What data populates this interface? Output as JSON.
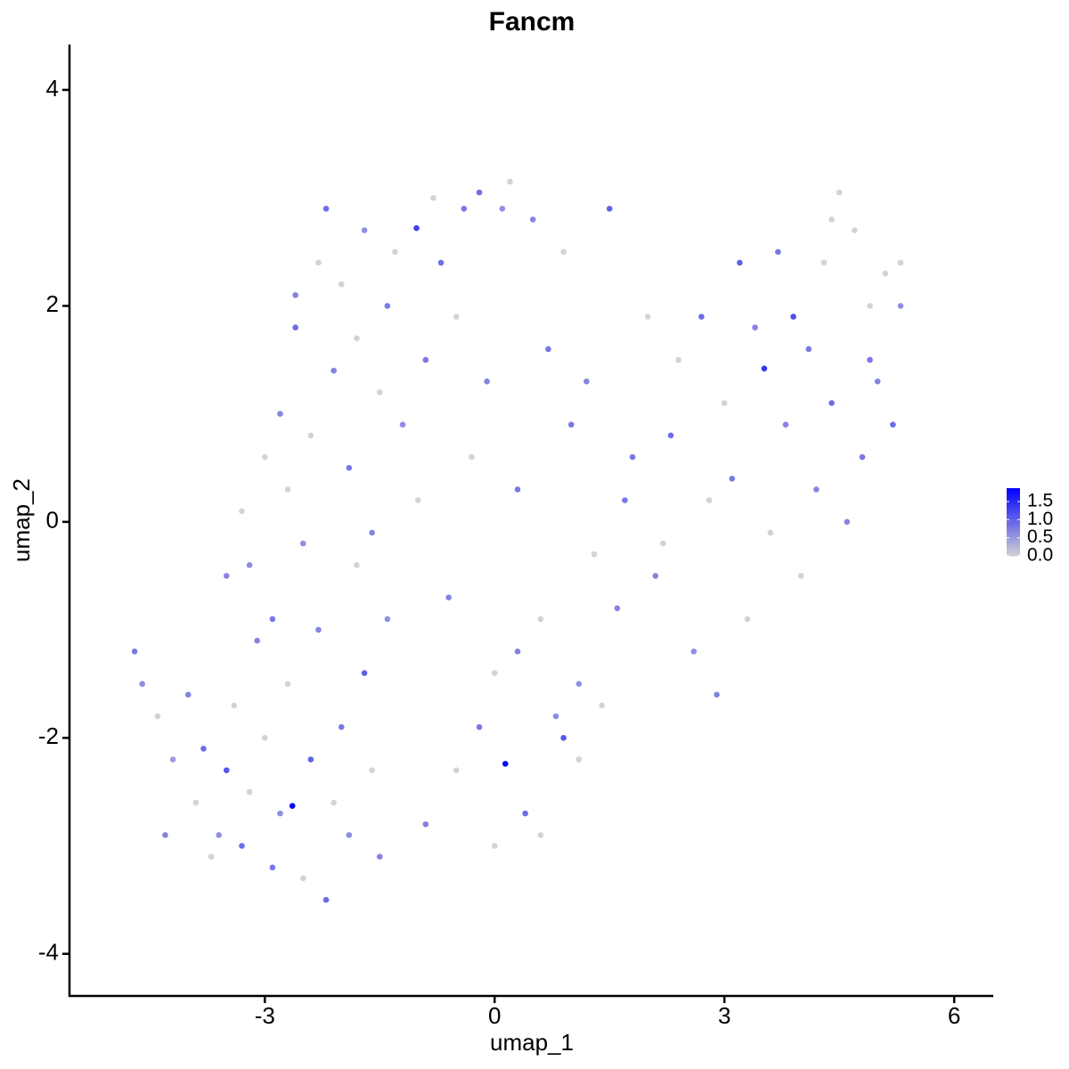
{
  "chart_data": {
    "type": "scatter",
    "title": "Fancm",
    "xlabel": "umap_1",
    "ylabel": "umap_2",
    "xlim": [
      -5.55,
      6.51
    ],
    "ylim": [
      -4.39,
      4.42
    ],
    "xticks": [
      -3,
      0,
      3,
      6
    ],
    "yticks": [
      -4,
      -2,
      0,
      2,
      4
    ],
    "color_low": "#d3d3d3",
    "color_high": "#0000ff",
    "colorlim": [
      0,
      1.87
    ],
    "colorbar_ticks": [
      {
        "value": 0,
        "label": "0.0"
      },
      {
        "value": 0.5,
        "label": "0.5"
      },
      {
        "value": 1,
        "label": "1.0"
      },
      {
        "value": 1.5,
        "label": "1.5"
      }
    ],
    "x": [
      -4.7,
      -4.6,
      -4.4,
      -4.2,
      -4.0,
      -3.9,
      -3.8,
      -3.6,
      -3.5,
      -3.4,
      -3.3,
      -3.2,
      -3.1,
      -3.0,
      -2.9,
      -2.8,
      -2.7,
      -2.64,
      -2.5,
      -2.4,
      -2.3,
      -2.2,
      -2.1,
      -2.0,
      -1.9,
      -1.8,
      -1.7,
      -1.6,
      -1.5,
      -1.4,
      -3.5,
      -3.3,
      -3.2,
      -3.0,
      -2.9,
      -2.8,
      -2.7,
      -2.6,
      -2.5,
      -2.4,
      -2.6,
      -2.3,
      -2.2,
      -2.1,
      -2.0,
      -1.9,
      -1.8,
      -1.7,
      -1.6,
      -1.5,
      -1.4,
      -1.3,
      -1.2,
      -1.02,
      -1.0,
      -0.9,
      -0.8,
      -0.7,
      -0.6,
      -0.5,
      -0.4,
      -0.3,
      -0.2,
      -0.1,
      0.0,
      0.1,
      0.14,
      0.2,
      0.3,
      0.4,
      0.5,
      0.6,
      0.7,
      0.8,
      0.9,
      1.0,
      1.1,
      1.2,
      1.3,
      1.5,
      -0.9,
      -0.5,
      -0.2,
      0.0,
      0.3,
      0.6,
      0.9,
      1.1,
      1.4,
      1.6,
      1.8,
      2.0,
      2.1,
      2.3,
      2.4,
      2.6,
      2.7,
      2.8,
      2.9,
      3.0,
      3.1,
      3.2,
      3.3,
      3.4,
      3.52,
      3.6,
      3.7,
      3.8,
      3.9,
      4.0,
      4.1,
      4.2,
      4.3,
      4.4,
      4.5,
      4.6,
      4.7,
      4.8,
      4.9,
      5.0,
      5.1,
      5.2,
      5.3,
      5.3,
      4.9,
      4.4,
      2.2,
      1.7,
      -4.3,
      -3.7
    ],
    "y": [
      -1.2,
      -1.5,
      -1.8,
      -2.2,
      -1.6,
      -2.6,
      -2.1,
      -2.9,
      -2.3,
      -1.7,
      -3.0,
      -2.5,
      -1.1,
      -2.0,
      -3.2,
      -2.7,
      -1.5,
      -2.63,
      -3.3,
      -2.2,
      -1.0,
      -3.5,
      -2.6,
      -1.9,
      -2.9,
      -0.4,
      -1.4,
      -2.3,
      -3.1,
      -0.9,
      -0.5,
      0.1,
      -0.4,
      0.6,
      -0.9,
      1.0,
      0.3,
      1.8,
      -0.2,
      0.8,
      2.1,
      2.4,
      2.9,
      1.4,
      2.2,
      0.5,
      1.7,
      2.7,
      -0.1,
      1.2,
      2.0,
      2.5,
      0.9,
      2.72,
      0.2,
      1.5,
      3.0,
      2.4,
      -0.7,
      1.9,
      2.9,
      0.6,
      3.05,
      1.3,
      -1.4,
      2.9,
      -2.24,
      3.15,
      0.3,
      -2.7,
      2.8,
      -0.9,
      1.6,
      -1.8,
      2.5,
      0.9,
      -2.2,
      1.3,
      -0.3,
      2.9,
      -2.8,
      -2.3,
      -1.9,
      -3.0,
      -1.2,
      -2.9,
      -2.0,
      -1.5,
      -1.7,
      -0.8,
      0.6,
      1.9,
      -0.5,
      0.8,
      1.5,
      -1.2,
      1.9,
      0.2,
      -1.6,
      1.1,
      0.4,
      2.4,
      -0.9,
      1.8,
      1.42,
      -0.1,
      2.5,
      0.9,
      1.9,
      -0.5,
      1.6,
      0.3,
      2.4,
      1.1,
      3.05,
      0.0,
      2.7,
      0.6,
      2.0,
      1.3,
      2.3,
      0.9,
      2.0,
      2.4,
      1.5,
      2.8,
      -0.2,
      0.2,
      -2.9,
      -3.1
    ],
    "values": [
      0.8,
      0.6,
      0,
      0.5,
      0.7,
      0,
      0.9,
      0.6,
      1.1,
      0,
      0.9,
      0,
      0.7,
      0,
      0.8,
      0.6,
      0,
      1.8,
      0,
      1.0,
      0.7,
      0.9,
      0,
      0.8,
      0.6,
      0,
      1.0,
      0,
      0.7,
      0.6,
      0.7,
      0,
      0.6,
      0,
      0.8,
      0.7,
      0,
      0.9,
      0.6,
      0,
      0.7,
      0,
      0.9,
      0.7,
      0,
      0.8,
      0,
      0.6,
      0.7,
      0,
      0.8,
      0,
      0.6,
      1.3,
      0,
      0.8,
      0,
      0.9,
      0.7,
      0,
      0.8,
      0,
      0.9,
      0.7,
      0,
      0.6,
      1.8,
      0,
      0.8,
      0.9,
      0.7,
      0,
      0.8,
      0.6,
      0,
      0.8,
      0,
      0.7,
      0,
      1.0,
      0.7,
      0,
      0.8,
      0,
      0.7,
      0,
      1.1,
      0.6,
      0,
      0.7,
      0.8,
      0,
      0.7,
      0.9,
      0,
      0.6,
      0.9,
      0,
      0.7,
      0,
      0.8,
      1.0,
      0,
      0.7,
      1.4,
      0,
      0.8,
      0.7,
      1.2,
      0,
      0.8,
      0.7,
      0,
      0.9,
      0,
      0.7,
      0,
      0.8,
      0,
      0.7,
      0,
      0.9,
      0.6,
      0,
      0.8,
      0,
      0,
      0.8,
      0.7,
      0
    ]
  }
}
